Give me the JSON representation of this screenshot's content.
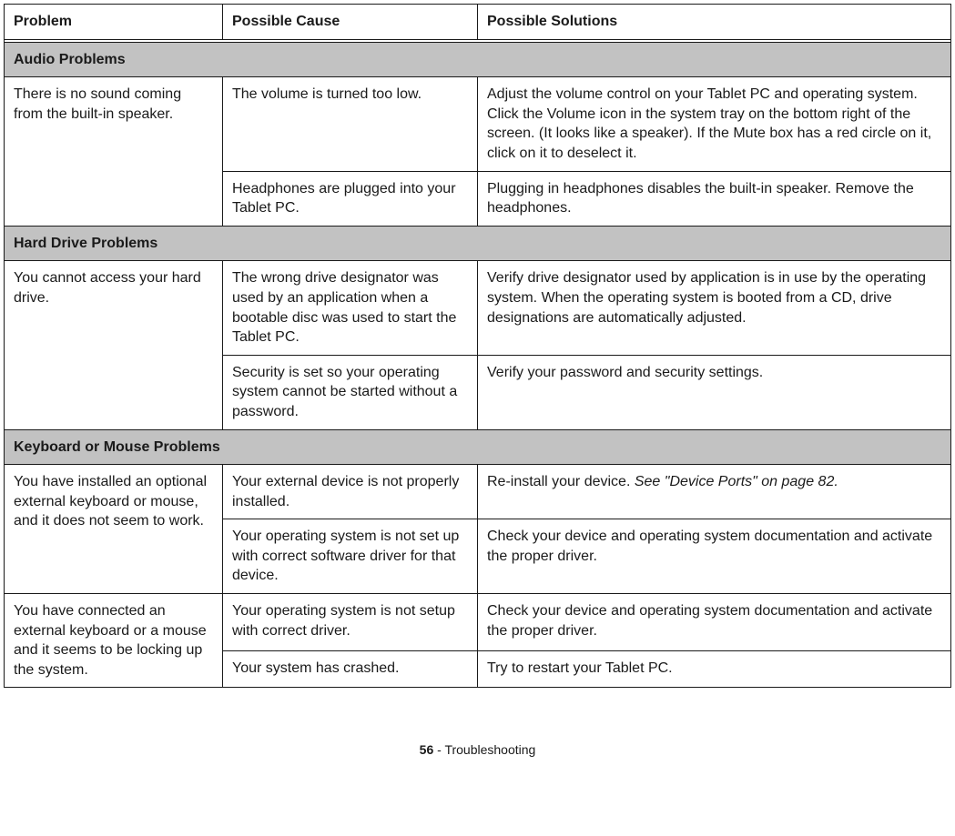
{
  "header": {
    "problem": "Problem",
    "cause": "Possible Cause",
    "solution": "Possible Solutions"
  },
  "sections": {
    "audio": "Audio Problems",
    "hdd": "Hard Drive Problems",
    "kbm": "Keyboard or Mouse Problems"
  },
  "rows": {
    "audio_p1": "There is no sound coming from the built-in speaker.",
    "audio_c1": "The volume is turned too low.",
    "audio_s1": "Adjust the volume control on your Tablet PC and operating system. Click the Volume icon in the system tray on the bottom right of the screen. (It looks like a speaker). If the Mute box has a red circle on it, click on it to deselect it.",
    "audio_c2": "Headphones are plugged into your Tablet PC.",
    "audio_s2": "Plugging in headphones disables the built-in speaker. Remove the headphones.",
    "hdd_p1": "You cannot access your hard drive.",
    "hdd_c1": "The wrong drive designator was used by an application when a bootable disc was used to start the Tablet PC.",
    "hdd_s1": "Verify drive designator used by application is in use by the operating system. When the operating system is booted from a CD, drive designations are automatically adjusted.",
    "hdd_c2": "Security is set so your operating system cannot be started without a password.",
    "hdd_s2": "Verify your password and security settings.",
    "kbm_p1": "You have installed an optional external keyboard or mouse, and it does not seem to work.",
    "kbm_c1": "Your external device is not properly installed.",
    "kbm_s1a": "Re-install your device. ",
    "kbm_s1b": "See \"Device Ports\" on page 82.",
    "kbm_c2": "Your operating system is not set up with correct software driver for that device.",
    "kbm_s2": "Check your device and operating system documentation and activate the proper driver.",
    "kbm_p2": "You have connected an external keyboard or a mouse and it seems to be locking up the system.",
    "kbm_c3": "Your operating system is not setup with correct driver.",
    "kbm_s3": "Check your device and operating system documentation and activate the proper driver.",
    "kbm_c4": "Your system has crashed.",
    "kbm_s4": "Try to restart your Tablet PC."
  },
  "footer": {
    "page": "56",
    "sep": " - ",
    "title": "Troubleshooting"
  }
}
